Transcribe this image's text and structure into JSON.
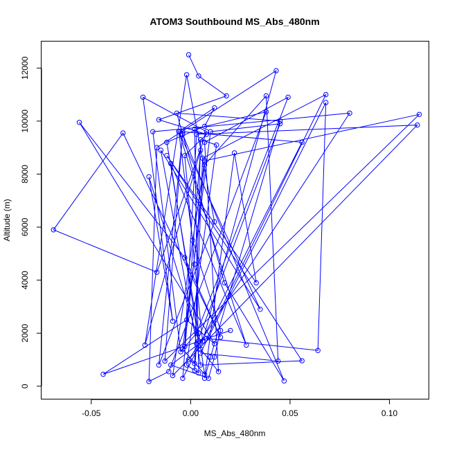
{
  "chart_data": {
    "type": "line",
    "title": "ATOM3 Southbound MS_Abs_480nm",
    "xlabel": "MS_Abs_480nm",
    "ylabel": "Altitude (m)",
    "xlim": [
      -0.075,
      0.12
    ],
    "ylim": [
      -500,
      13000
    ],
    "xticks": [
      -0.05,
      0.0,
      0.05,
      0.1
    ],
    "xtick_labels": [
      "-0.05",
      "0.00",
      "0.05",
      "0.10"
    ],
    "yticks": [
      0,
      2000,
      4000,
      6000,
      8000,
      10000,
      12000
    ],
    "ytick_labels": [
      "0",
      "2000",
      "4000",
      "6000",
      "8000",
      "10000",
      "12000"
    ],
    "grid": false,
    "marker": "open-circle",
    "line_color": "#0000ff",
    "series": [
      {
        "points": [
          [
            -0.001,
            12500
          ],
          [
            0.004,
            11700
          ],
          [
            0.018,
            10950
          ],
          [
            -0.016,
            10050
          ],
          [
            0.008,
            9500
          ],
          [
            -0.003,
            8700
          ],
          [
            0.002,
            4600
          ],
          [
            0.006,
            1700
          ],
          [
            -0.01,
            800
          ],
          [
            0.009,
            300
          ],
          [
            0.012,
            1100
          ],
          [
            0.015,
            2100
          ],
          [
            0.001,
            5500
          ],
          [
            -0.006,
            9600
          ],
          [
            0.012,
            10500
          ],
          [
            0.007,
            9800
          ],
          [
            -0.012,
            9200
          ],
          [
            0.004,
            2000
          ],
          [
            0.007,
            450
          ],
          [
            -0.004,
            1400
          ],
          [
            0.01,
            9600
          ],
          [
            0.045,
            9900
          ],
          [
            0.003,
            1600
          ],
          [
            0.002,
            600
          ],
          [
            0.005,
            9300
          ],
          [
            0.013,
            9100
          ],
          [
            -0.002,
            800
          ],
          [
            0.004,
            500
          ],
          [
            0.002,
            9700
          ],
          [
            0.038,
            10350
          ],
          [
            -0.011,
            550
          ],
          [
            -0.021,
            180
          ],
          [
            -0.017,
            9000
          ],
          [
            0.043,
            11900
          ],
          [
            0.005,
            1400
          ],
          [
            0.014,
            550
          ],
          [
            0.007,
            9200
          ],
          [
            0.049,
            10900
          ],
          [
            0.003,
            2000
          ],
          [
            -0.005,
            1300
          ],
          [
            -0.019,
            9600
          ],
          [
            0.08,
            10300
          ],
          [
            -0.001,
            1000
          ],
          [
            0.002,
            850
          ],
          [
            0.006,
            8600
          ],
          [
            0.068,
            11000
          ],
          [
            0.008,
            1800
          ],
          [
            0.064,
            1350
          ],
          [
            0.068,
            10700
          ],
          [
            0.005,
            1250
          ],
          [
            0.044,
            950
          ],
          [
            0.038,
            10950
          ],
          [
            0.007,
            8350
          ],
          [
            -0.003,
            1500
          ],
          [
            0.003,
            9500
          ],
          [
            0.114,
            9850
          ],
          [
            -0.009,
            400
          ],
          [
            0.007,
            8500
          ],
          [
            0.115,
            10250
          ],
          [
            -0.013,
            950
          ],
          [
            -0.004,
            9600
          ],
          [
            0.056,
            9200
          ],
          [
            -0.004,
            300
          ],
          [
            0.005,
            8900
          ],
          [
            -0.023,
            1550
          ],
          [
            -0.002,
            11750
          ],
          [
            0.012,
            6200
          ],
          [
            -0.016,
            800
          ],
          [
            -0.004,
            9500
          ],
          [
            0.047,
            200
          ],
          [
            0.017,
            3900
          ],
          [
            -0.007,
            10300
          ],
          [
            0.045,
            10000
          ],
          [
            0.01,
            1100
          ],
          [
            0.007,
            300
          ],
          [
            0.022,
            8800
          ],
          [
            0.033,
            3900
          ],
          [
            -0.012,
            8700
          ],
          [
            0.056,
            960
          ],
          [
            0.005,
            800
          ],
          [
            -0.015,
            8900
          ],
          [
            0.035,
            2900
          ],
          [
            -0.006,
            9600
          ],
          [
            0.028,
            1550
          ],
          [
            -0.01,
            8400
          ],
          [
            0.004,
            1700
          ],
          [
            -0.021,
            7900
          ],
          [
            -0.009,
            2450
          ],
          [
            -0.024,
            10900
          ],
          [
            0.008,
            9600
          ],
          [
            -0.017,
            4300
          ],
          [
            -0.069,
            5900
          ],
          [
            -0.034,
            9550
          ],
          [
            0.015,
            1850
          ],
          [
            -0.003,
            4850
          ],
          [
            -0.056,
            9950
          ],
          [
            0.012,
            1600
          ],
          [
            -0.002,
            2500
          ],
          [
            -0.044,
            450
          ],
          [
            0.02,
            2100
          ]
        ]
      }
    ]
  }
}
